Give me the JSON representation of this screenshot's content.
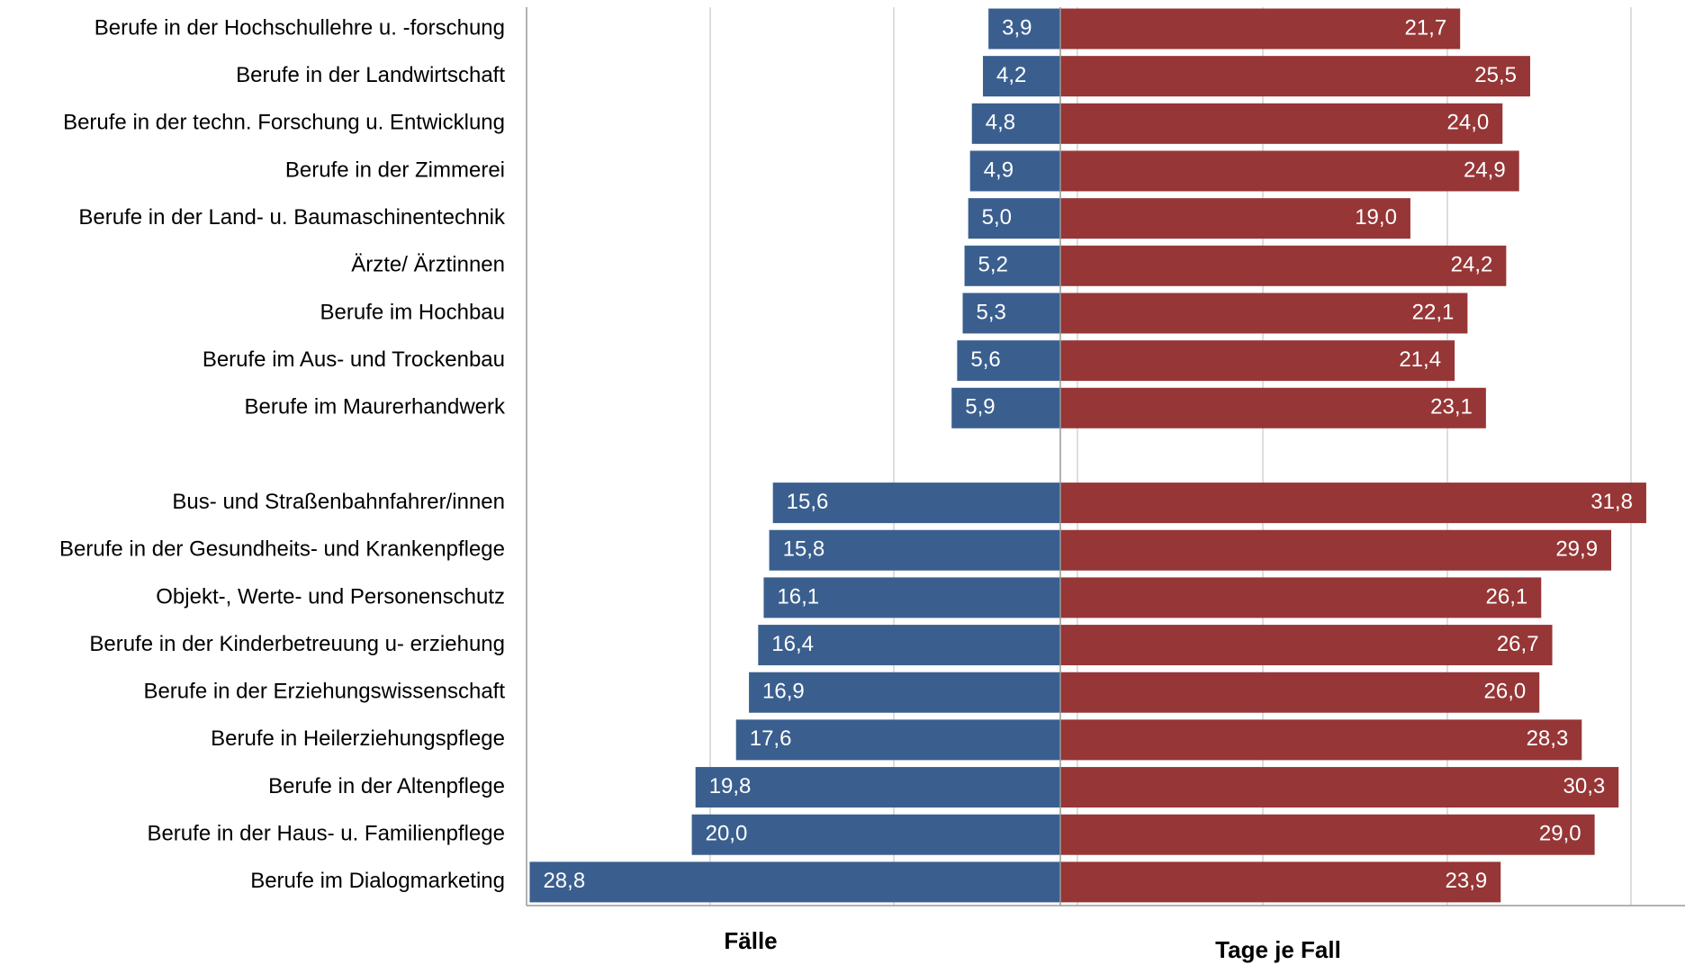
{
  "chart_data": {
    "type": "butterfly",
    "categories": [
      "Berufe in der Hochschullehre u. -forschung",
      "Berufe in der Landwirtschaft",
      "Berufe in der techn. Forschung u. Entwicklung",
      "Berufe in der Zimmerei",
      "Berufe in der Land- u. Baumaschinentechnik",
      "Ärzte/ Ärztinnen",
      "Berufe im Hochbau",
      "Berufe im Aus- und Trockenbau",
      "Berufe im Maurerhandwerk",
      null,
      "Bus- und Straßenbahnfahrer/innen",
      "Berufe in der Gesundheits- und Krankenpflege",
      "Objekt-, Werte- und Personenschutz",
      "Berufe in der Kinderbetreuung u- erziehung",
      "Berufe in der Erziehungswissenschaft",
      "Berufe in Heilerziehungspflege",
      "Berufe in der Altenpflege",
      "Berufe in der Haus- u. Familienpflege",
      "Berufe im Dialogmarketing"
    ],
    "series": [
      {
        "name": "Fälle",
        "color": "#3a5f8f",
        "side": "left",
        "values": [
          3.9,
          4.2,
          4.8,
          4.9,
          5.0,
          5.2,
          5.3,
          5.6,
          5.9,
          null,
          15.6,
          15.8,
          16.1,
          16.4,
          16.9,
          17.6,
          19.8,
          20.0,
          28.8
        ],
        "value_labels": [
          "3,9",
          "4,2",
          "4,8",
          "4,9",
          "5,0",
          "5,2",
          "5,3",
          "5,6",
          "5,9",
          null,
          "15,6",
          "15,8",
          "16,1",
          "16,4",
          "16,9",
          "17,6",
          "19,8",
          "20,0",
          "28,8"
        ]
      },
      {
        "name": "Tage je Fall",
        "color": "#963636",
        "side": "right",
        "values": [
          21.7,
          25.5,
          24.0,
          24.9,
          19.0,
          24.2,
          22.1,
          21.4,
          23.1,
          null,
          31.8,
          29.9,
          26.1,
          26.7,
          26.0,
          28.3,
          30.3,
          29.0,
          23.9
        ],
        "value_labels": [
          "21,7",
          "25,5",
          "24,0",
          "24,9",
          "19,0",
          "24,2",
          "22,1",
          "21,4",
          "23,1",
          null,
          "31,8",
          "29,9",
          "26,1",
          "26,7",
          "26,0",
          "28,3",
          "30,3",
          "29,0",
          "23,9"
        ]
      }
    ]
  }
}
